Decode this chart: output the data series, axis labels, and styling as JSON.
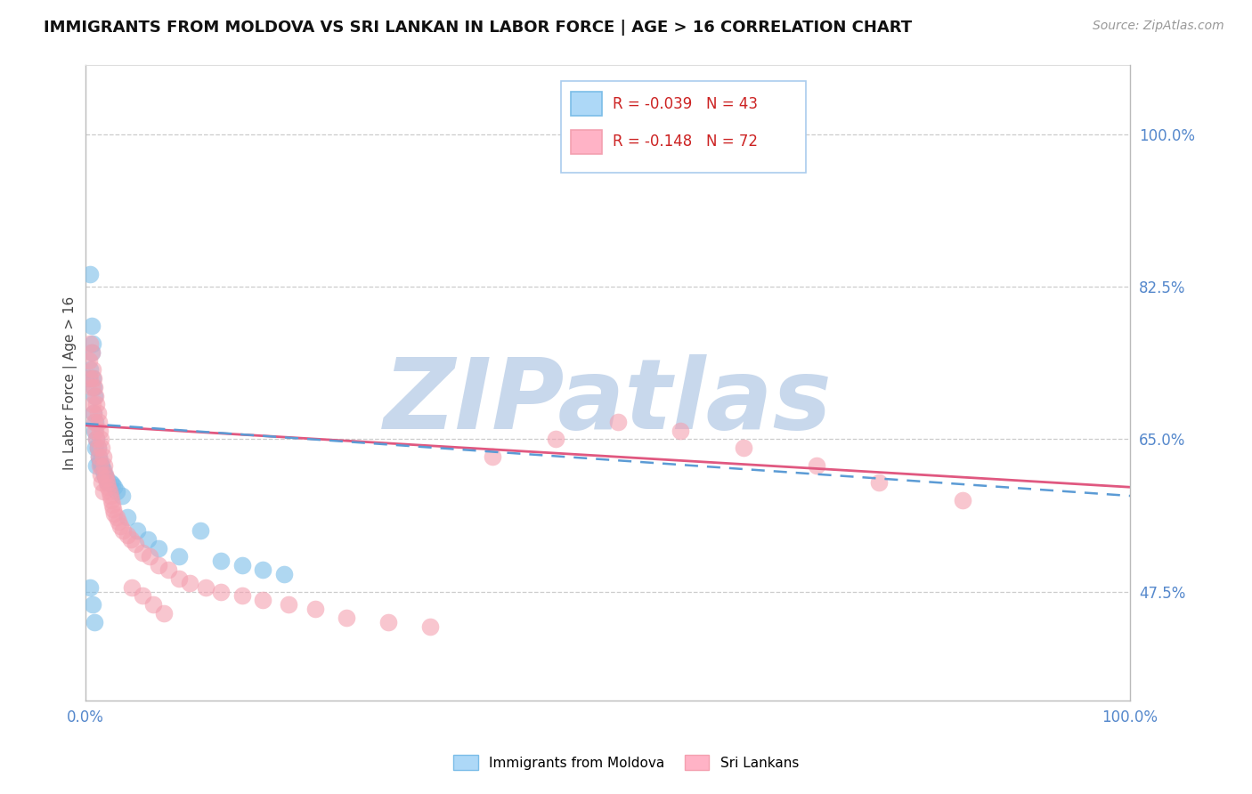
{
  "title": "IMMIGRANTS FROM MOLDOVA VS SRI LANKAN IN LABOR FORCE | AGE > 16 CORRELATION CHART",
  "source": "Source: ZipAtlas.com",
  "ylabel": "In Labor Force | Age > 16",
  "xlim": [
    0.0,
    1.0
  ],
  "ylim": [
    0.35,
    1.08
  ],
  "x_ticks": [
    0.0,
    0.1,
    0.2,
    0.3,
    0.4,
    0.5,
    0.6,
    0.7,
    0.8,
    0.9,
    1.0
  ],
  "x_tick_labels": [
    "0.0%",
    "",
    "",
    "",
    "",
    "",
    "",
    "",
    "",
    "",
    "100.0%"
  ],
  "y_ticks_right": [
    0.475,
    0.65,
    0.825,
    1.0
  ],
  "y_tick_labels_right": [
    "47.5%",
    "65.0%",
    "82.5%",
    "100.0%"
  ],
  "moldova_R": -0.039,
  "moldova_N": 43,
  "srilanka_R": -0.148,
  "srilanka_N": 72,
  "moldova_color": "#7bbde8",
  "srilanka_color": "#f4a0b0",
  "moldova_line_color": "#5b9bd5",
  "srilanka_line_color": "#e05880",
  "watermark": "ZIPatlas",
  "watermark_color": "#c8d8ec",
  "moldova_x": [
    0.004,
    0.005,
    0.005,
    0.006,
    0.006,
    0.007,
    0.007,
    0.008,
    0.008,
    0.009,
    0.009,
    0.01,
    0.01,
    0.011,
    0.011,
    0.012,
    0.013,
    0.014,
    0.015,
    0.016,
    0.017,
    0.018,
    0.019,
    0.02,
    0.022,
    0.024,
    0.026,
    0.028,
    0.03,
    0.035,
    0.04,
    0.05,
    0.06,
    0.07,
    0.09,
    0.11,
    0.13,
    0.15,
    0.17,
    0.19,
    0.005,
    0.007,
    0.009
  ],
  "moldova_y": [
    0.72,
    0.84,
    0.73,
    0.78,
    0.75,
    0.76,
    0.72,
    0.71,
    0.68,
    0.7,
    0.66,
    0.67,
    0.64,
    0.65,
    0.62,
    0.64,
    0.63,
    0.625,
    0.62,
    0.62,
    0.615,
    0.61,
    0.608,
    0.605,
    0.6,
    0.6,
    0.598,
    0.595,
    0.59,
    0.585,
    0.56,
    0.545,
    0.535,
    0.525,
    0.515,
    0.545,
    0.51,
    0.505,
    0.5,
    0.495,
    0.48,
    0.46,
    0.44
  ],
  "srilanka_x": [
    0.004,
    0.005,
    0.005,
    0.006,
    0.006,
    0.007,
    0.007,
    0.008,
    0.008,
    0.009,
    0.009,
    0.01,
    0.01,
    0.011,
    0.011,
    0.012,
    0.012,
    0.013,
    0.013,
    0.014,
    0.014,
    0.015,
    0.015,
    0.016,
    0.016,
    0.017,
    0.017,
    0.018,
    0.019,
    0.02,
    0.021,
    0.022,
    0.023,
    0.024,
    0.025,
    0.026,
    0.027,
    0.028,
    0.03,
    0.032,
    0.034,
    0.036,
    0.04,
    0.044,
    0.048,
    0.055,
    0.062,
    0.07,
    0.08,
    0.09,
    0.1,
    0.115,
    0.13,
    0.15,
    0.17,
    0.195,
    0.22,
    0.25,
    0.29,
    0.33,
    0.39,
    0.45,
    0.51,
    0.57,
    0.63,
    0.7,
    0.76,
    0.84,
    0.045,
    0.055,
    0.065,
    0.075
  ],
  "srilanka_y": [
    0.74,
    0.76,
    0.72,
    0.75,
    0.71,
    0.73,
    0.69,
    0.72,
    0.68,
    0.71,
    0.67,
    0.7,
    0.66,
    0.69,
    0.65,
    0.68,
    0.64,
    0.67,
    0.63,
    0.66,
    0.62,
    0.65,
    0.61,
    0.64,
    0.6,
    0.63,
    0.59,
    0.62,
    0.61,
    0.605,
    0.6,
    0.595,
    0.59,
    0.585,
    0.58,
    0.575,
    0.57,
    0.565,
    0.56,
    0.555,
    0.55,
    0.545,
    0.54,
    0.535,
    0.53,
    0.52,
    0.515,
    0.505,
    0.5,
    0.49,
    0.485,
    0.48,
    0.475,
    0.47,
    0.465,
    0.46,
    0.455,
    0.445,
    0.44,
    0.435,
    0.63,
    0.65,
    0.67,
    0.66,
    0.64,
    0.62,
    0.6,
    0.58,
    0.48,
    0.47,
    0.46,
    0.45
  ],
  "moldova_trend_x0": 0.0,
  "moldova_trend_y0": 0.668,
  "moldova_trend_x1": 1.0,
  "moldova_trend_y1": 0.585,
  "srilanka_trend_x0": 0.0,
  "srilanka_trend_y0": 0.666,
  "srilanka_trend_x1": 1.0,
  "srilanka_trend_y1": 0.595
}
